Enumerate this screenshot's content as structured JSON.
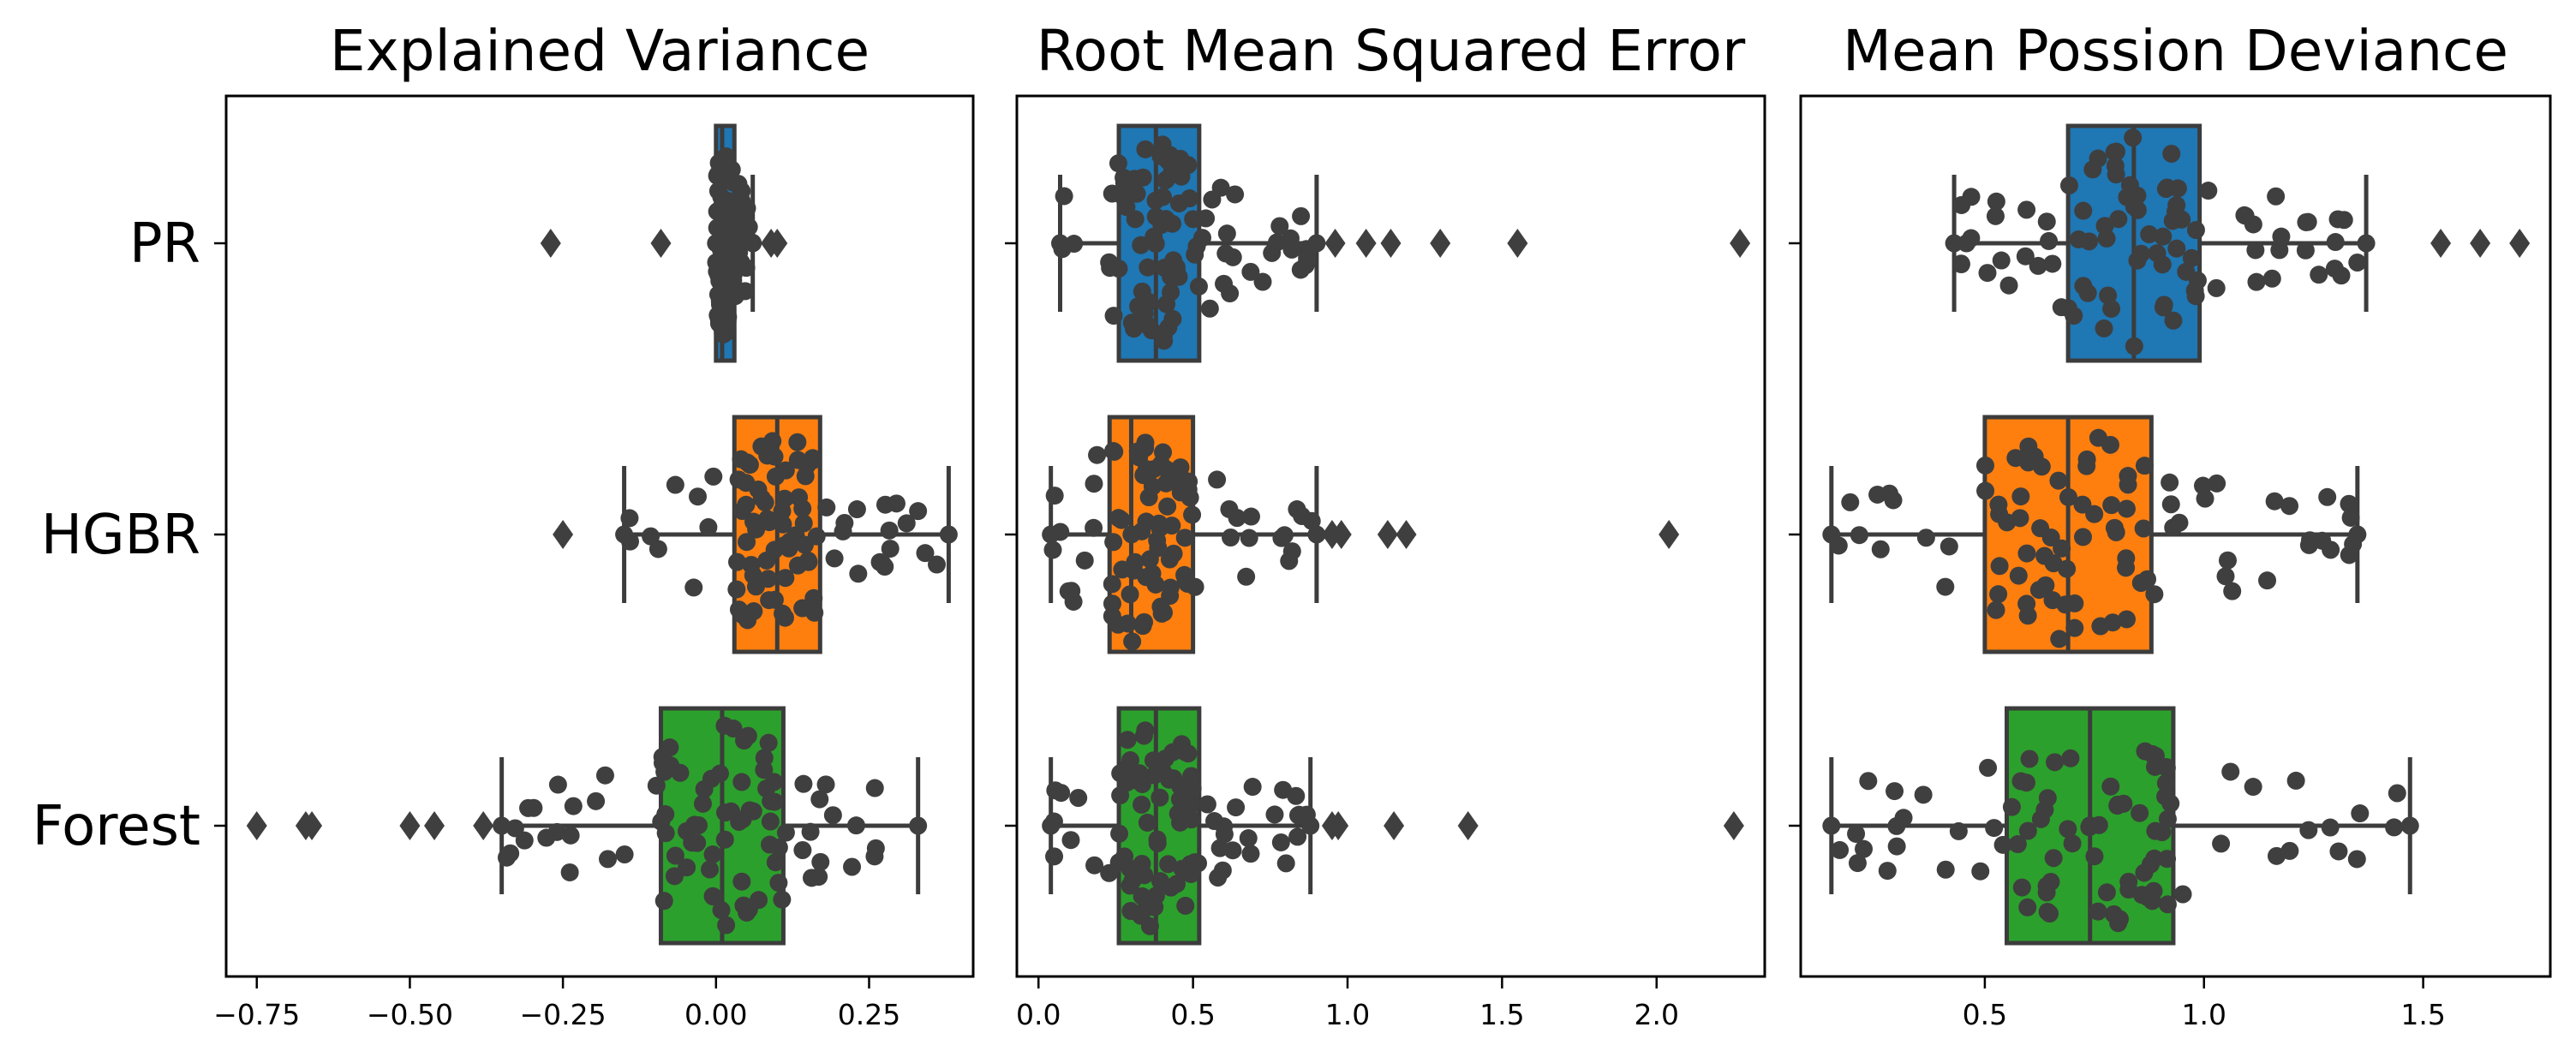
{
  "chart_data": [
    {
      "type": "box-swarm",
      "title": "Explained Variance",
      "categories": [
        "PR",
        "HGBR",
        "Forest"
      ],
      "xlim": [
        -0.8,
        0.42
      ],
      "xticks": [
        -0.75,
        -0.5,
        -0.25,
        0.0,
        0.25
      ],
      "xtick_labels": [
        "−0.75",
        "−0.50",
        "−0.25",
        "0.00",
        "0.25"
      ],
      "boxes": [
        {
          "category": "PR",
          "color": "#1f77b4",
          "whisker_low": 0.0,
          "q1": 0.0,
          "median": 0.01,
          "q3": 0.03,
          "whisker_high": 0.06,
          "outliers": [
            -0.27,
            -0.09,
            0.09,
            0.1
          ]
        },
        {
          "category": "HGBR",
          "color": "#ff7f0e",
          "whisker_low": -0.15,
          "q1": 0.03,
          "median": 0.1,
          "q3": 0.17,
          "whisker_high": 0.38,
          "outliers": [
            -0.25
          ]
        },
        {
          "category": "Forest",
          "color": "#2ca02c",
          "whisker_low": -0.35,
          "q1": -0.09,
          "median": 0.01,
          "q3": 0.11,
          "whisker_high": 0.33,
          "outliers": [
            -0.75,
            -0.67,
            -0.66,
            -0.5,
            -0.46,
            -0.38
          ]
        }
      ]
    },
    {
      "type": "box-swarm",
      "title": "Root Mean Squared Error",
      "categories": [
        "PR",
        "HGBR",
        "Forest"
      ],
      "xlim": [
        -0.07,
        2.35
      ],
      "xticks": [
        0.0,
        0.5,
        1.0,
        1.5,
        2.0
      ],
      "xtick_labels": [
        "0.0",
        "0.5",
        "1.0",
        "1.5",
        "2.0"
      ],
      "boxes": [
        {
          "category": "PR",
          "color": "#1f77b4",
          "whisker_low": 0.07,
          "q1": 0.26,
          "median": 0.38,
          "q3": 0.52,
          "whisker_high": 0.9,
          "outliers": [
            0.96,
            1.06,
            1.14,
            1.3,
            1.55,
            2.27
          ]
        },
        {
          "category": "HGBR",
          "color": "#ff7f0e",
          "whisker_low": 0.04,
          "q1": 0.23,
          "median": 0.3,
          "q3": 0.5,
          "whisker_high": 0.9,
          "outliers": [
            0.95,
            0.98,
            1.13,
            1.19,
            2.04
          ]
        },
        {
          "category": "Forest",
          "color": "#2ca02c",
          "whisker_low": 0.04,
          "q1": 0.26,
          "median": 0.38,
          "q3": 0.52,
          "whisker_high": 0.88,
          "outliers": [
            0.95,
            0.97,
            1.15,
            1.39,
            2.25
          ]
        }
      ]
    },
    {
      "type": "box-swarm",
      "title": "Mean Possion Deviance",
      "categories": [
        "PR",
        "HGBR",
        "Forest"
      ],
      "xlim": [
        0.08,
        1.79
      ],
      "xticks": [
        0.5,
        1.0,
        1.5
      ],
      "xtick_labels": [
        "0.5",
        "1.0",
        "1.5"
      ],
      "boxes": [
        {
          "category": "PR",
          "color": "#1f77b4",
          "whisker_low": 0.43,
          "q1": 0.69,
          "median": 0.84,
          "q3": 0.99,
          "whisker_high": 1.37,
          "outliers": [
            1.54,
            1.63,
            1.72
          ]
        },
        {
          "category": "HGBR",
          "color": "#ff7f0e",
          "whisker_low": 0.15,
          "q1": 0.5,
          "median": 0.69,
          "q3": 0.88,
          "whisker_high": 1.35,
          "outliers": []
        },
        {
          "category": "Forest",
          "color": "#2ca02c",
          "whisker_low": 0.15,
          "q1": 0.55,
          "median": 0.74,
          "q3": 0.93,
          "whisker_high": 1.47,
          "outliers": []
        }
      ]
    }
  ],
  "style": {
    "edge_color": "#3c3c3c",
    "swarm_color": "#3f3f3f"
  }
}
